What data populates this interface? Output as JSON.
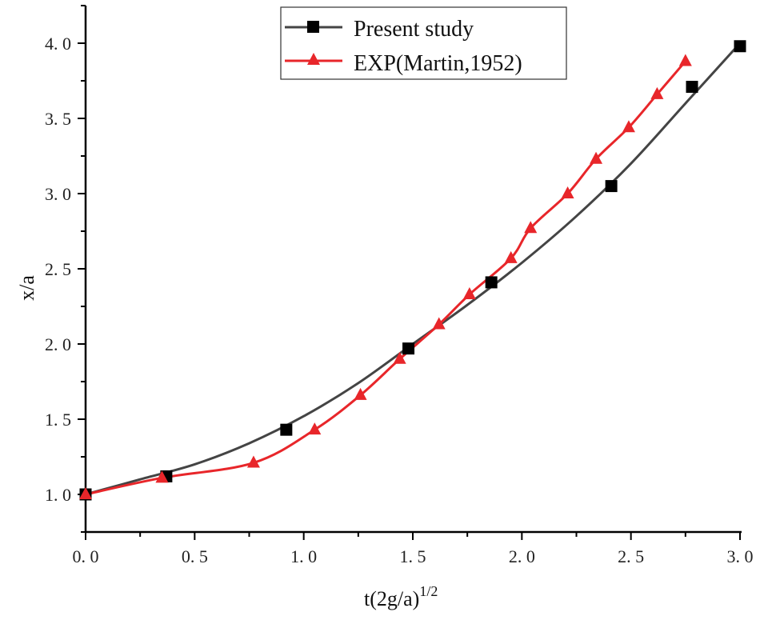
{
  "chart_data": {
    "type": "line",
    "xlabel": "t(2g/a)",
    "xlabel_superscript": "1/2",
    "ylabel": "x/a",
    "xlim": [
      0,
      3.0
    ],
    "ylim": [
      0.75,
      4.25
    ],
    "xticks": [
      "0.0",
      "0.5",
      "1.0",
      "1.5",
      "2.0",
      "2.5",
      "3.0"
    ],
    "yticks": [
      "1.0",
      "1.5",
      "2.0",
      "2.5",
      "3.0",
      "3.5",
      "4.0"
    ],
    "grid": false,
    "legend_position": "top-center",
    "series": [
      {
        "name": "Present study",
        "color": "#000000",
        "line_color": "#444444",
        "marker": "square",
        "x": [
          0.0,
          0.37,
          0.92,
          1.48,
          1.86,
          2.41,
          2.78,
          3.0
        ],
        "y": [
          1.0,
          1.12,
          1.43,
          1.97,
          2.41,
          3.05,
          3.71,
          3.98
        ],
        "curve_x": [
          0.0,
          0.25,
          0.5,
          0.75,
          1.0,
          1.25,
          1.5,
          1.75,
          2.0,
          2.25,
          2.5,
          2.75,
          3.0
        ],
        "curve_y": [
          1.0,
          1.1,
          1.2,
          1.34,
          1.52,
          1.74,
          2.0,
          2.26,
          2.54,
          2.85,
          3.2,
          3.6,
          4.0
        ]
      },
      {
        "name": "EXP(Martin,1952)",
        "color": "#e8262a",
        "line_color": "#e8262a",
        "marker": "triangle",
        "x": [
          0.0,
          0.35,
          0.77,
          1.05,
          1.26,
          1.44,
          1.62,
          1.76,
          1.95,
          2.04,
          2.21,
          2.34,
          2.49,
          2.62,
          2.75
        ],
        "y": [
          1.0,
          1.11,
          1.21,
          1.43,
          1.66,
          1.9,
          2.13,
          2.33,
          2.57,
          2.77,
          3.0,
          3.23,
          3.44,
          3.66,
          3.88
        ]
      }
    ]
  }
}
